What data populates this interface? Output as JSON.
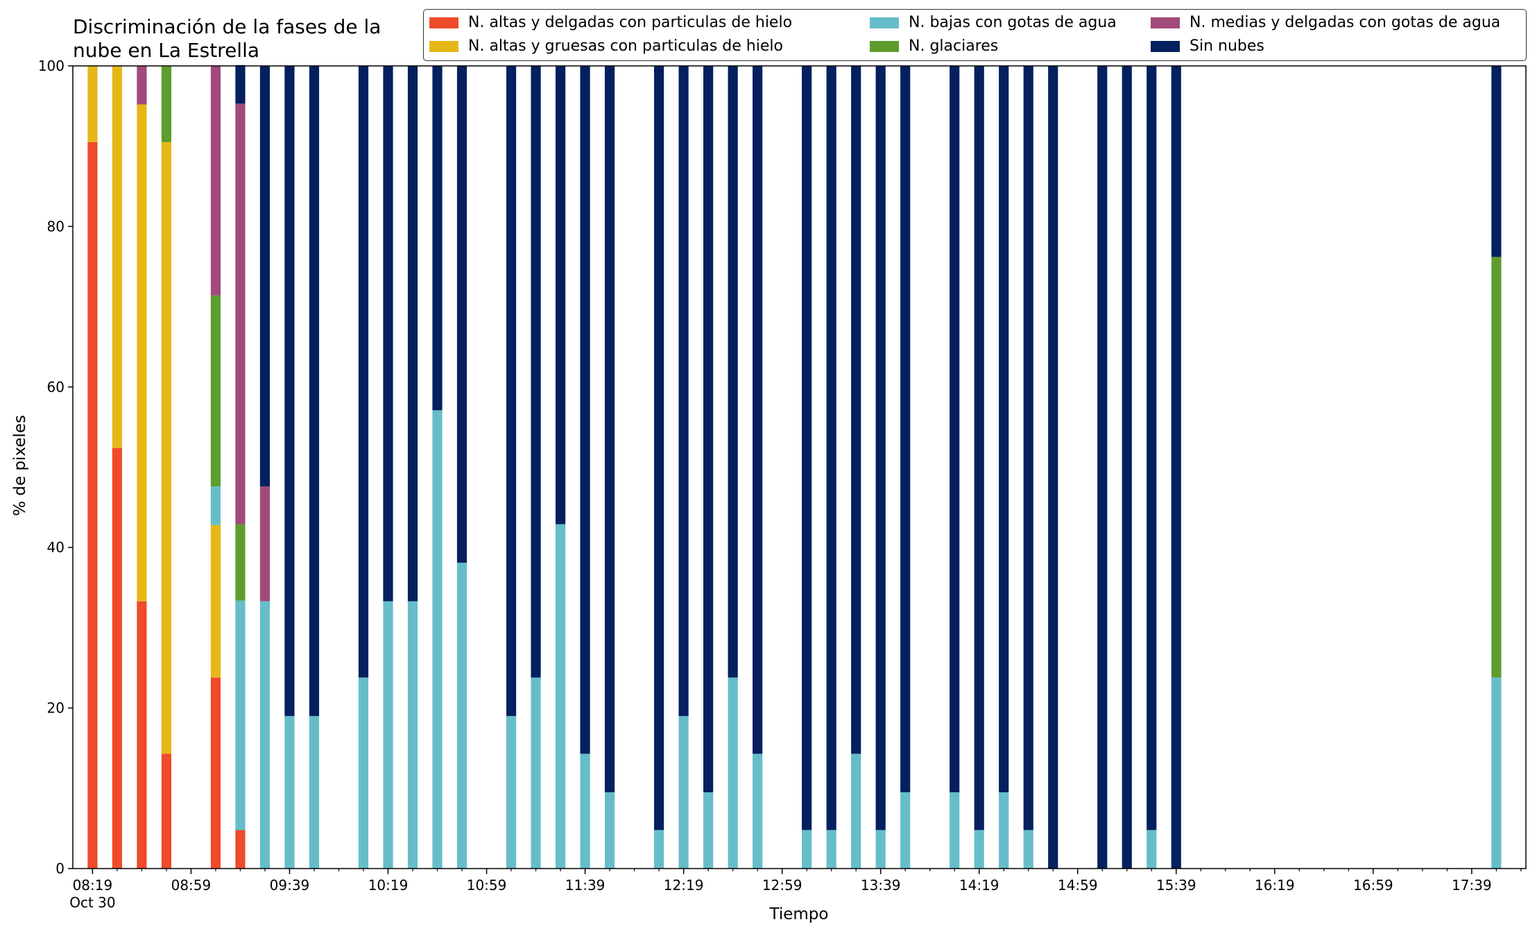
{
  "chart_data": {
    "type": "bar",
    "stacked": true,
    "title_lines": [
      "Discriminación de la fases de la",
      "nube en La Estrella"
    ],
    "xlabel": "Tiempo",
    "ylabel": "% de pixeles",
    "ylim": [
      0,
      100
    ],
    "yticks": [
      "0",
      "20",
      "40",
      "60",
      "80",
      "100"
    ],
    "xlim": [
      "08:11",
      "18:01"
    ],
    "bar_width_minutes": 4,
    "xticks": [
      {
        "time": "08:19",
        "label": "08:19",
        "sublabel": "Oct 30"
      },
      {
        "time": "08:59",
        "label": "08:59"
      },
      {
        "time": "09:39",
        "label": "09:39"
      },
      {
        "time": "10:19",
        "label": "10:19"
      },
      {
        "time": "10:59",
        "label": "10:59"
      },
      {
        "time": "11:39",
        "label": "11:39"
      },
      {
        "time": "12:19",
        "label": "12:19"
      },
      {
        "time": "12:59",
        "label": "12:59"
      },
      {
        "time": "13:39",
        "label": "13:39"
      },
      {
        "time": "14:19",
        "label": "14:19"
      },
      {
        "time": "14:59",
        "label": "14:59"
      },
      {
        "time": "15:39",
        "label": "15:39"
      },
      {
        "time": "16:19",
        "label": "16:19"
      },
      {
        "time": "16:59",
        "label": "16:59"
      },
      {
        "time": "17:39",
        "label": "17:39"
      }
    ],
    "x": [
      "08:19",
      "08:29",
      "08:39",
      "08:49",
      "09:09",
      "09:19",
      "09:29",
      "09:39",
      "09:49",
      "10:09",
      "10:19",
      "10:29",
      "10:39",
      "10:49",
      "11:09",
      "11:19",
      "11:29",
      "11:39",
      "11:49",
      "12:09",
      "12:19",
      "12:29",
      "12:39",
      "12:49",
      "13:09",
      "13:19",
      "13:29",
      "13:39",
      "13:49",
      "14:09",
      "14:19",
      "14:29",
      "14:39",
      "14:49",
      "15:09",
      "15:19",
      "15:29",
      "15:39",
      "17:49"
    ],
    "series": [
      {
        "name": "N. altas y delgadas con particulas de hielo",
        "color": "#ee4b2b",
        "values": [
          90.5,
          52.4,
          33.3,
          14.3,
          23.8,
          4.8,
          0,
          0,
          0,
          0,
          0,
          0,
          0,
          0,
          0,
          0,
          0,
          0,
          0,
          0,
          0,
          0,
          0,
          0,
          0,
          0,
          0,
          0,
          0,
          0,
          0,
          0,
          0,
          0,
          0,
          0,
          0,
          0,
          0
        ]
      },
      {
        "name": "N. altas y gruesas con particulas de hielo",
        "color": "#e5b719",
        "values": [
          9.5,
          47.6,
          61.9,
          76.2,
          19.0,
          0,
          0,
          0,
          0,
          0,
          0,
          0,
          0,
          0,
          0,
          0,
          0,
          0,
          0,
          0,
          0,
          0,
          0,
          0,
          0,
          0,
          0,
          0,
          0,
          0,
          0,
          0,
          0,
          0,
          0,
          0,
          0,
          0,
          0
        ]
      },
      {
        "name": "N. bajas con gotas de agua",
        "color": "#66bdc9",
        "values": [
          0,
          0,
          0,
          0,
          4.8,
          28.6,
          33.3,
          19.0,
          19.0,
          23.8,
          33.3,
          33.3,
          57.1,
          38.1,
          19.0,
          23.8,
          42.9,
          14.3,
          9.5,
          4.8,
          19.0,
          9.5,
          23.8,
          14.3,
          4.8,
          4.8,
          14.3,
          4.8,
          9.5,
          9.5,
          4.8,
          9.5,
          4.8,
          0,
          0,
          0,
          4.8,
          0,
          23.8
        ]
      },
      {
        "name": "N. glaciares",
        "color": "#5e9d2d",
        "values": [
          0,
          0,
          0,
          9.5,
          23.8,
          9.5,
          0,
          0,
          0,
          0,
          0,
          0,
          0,
          0,
          0,
          0,
          0,
          0,
          0,
          0,
          0,
          0,
          0,
          0,
          0,
          0,
          0,
          0,
          0,
          0,
          0,
          0,
          0,
          0,
          0,
          0,
          0,
          0,
          52.4
        ]
      },
      {
        "name": "N. medias y delgadas con gotas de agua",
        "color": "#a14a7b",
        "values": [
          0,
          0,
          4.8,
          0,
          28.6,
          52.4,
          14.3,
          0,
          0,
          0,
          0,
          0,
          0,
          0,
          0,
          0,
          0,
          0,
          0,
          0,
          0,
          0,
          0,
          0,
          0,
          0,
          0,
          0,
          0,
          0,
          0,
          0,
          0,
          0,
          0,
          0,
          0,
          0,
          0
        ]
      },
      {
        "name": "Sin nubes",
        "color": "#04205f",
        "values": [
          0,
          0,
          0,
          0,
          0,
          4.8,
          52.4,
          81.0,
          81.0,
          76.2,
          66.7,
          66.7,
          42.9,
          61.9,
          81.0,
          76.2,
          57.1,
          85.7,
          90.5,
          95.2,
          81.0,
          90.5,
          76.2,
          85.7,
          95.2,
          95.2,
          85.7,
          95.2,
          90.5,
          90.5,
          95.2,
          90.5,
          95.2,
          100,
          100,
          100,
          95.2,
          100,
          23.8
        ]
      }
    ],
    "legend": {
      "position": "top-right",
      "columns": 3,
      "order": [
        0,
        1,
        2,
        3,
        4,
        5
      ]
    }
  }
}
